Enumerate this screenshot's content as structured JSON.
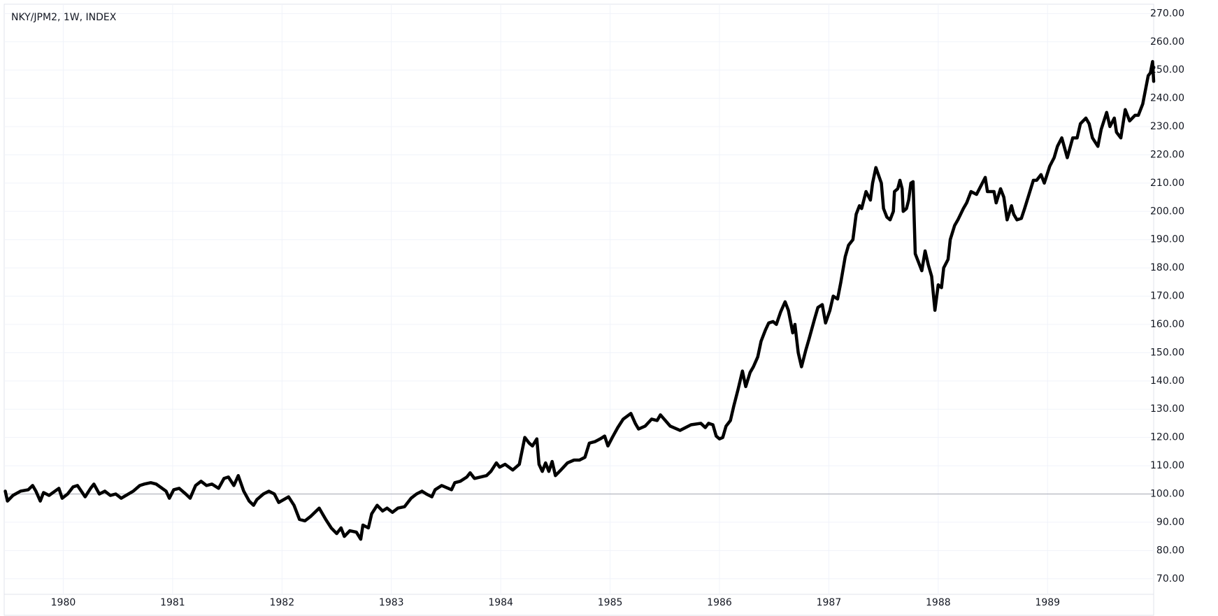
{
  "chart_data": {
    "type": "line",
    "title": "NKY/JPM2, 1W, INDEX",
    "color": "#000000",
    "grid": true,
    "baseline": 100,
    "x": [
      1979.47,
      1979.49,
      1979.54,
      1979.61,
      1979.68,
      1979.72,
      1979.75,
      1979.79,
      1979.82,
      1979.87,
      1979.96,
      1979.99,
      1980.04,
      1980.09,
      1980.13,
      1980.2,
      1980.25,
      1980.28,
      1980.33,
      1980.38,
      1980.43,
      1980.48,
      1980.53,
      1980.64,
      1980.7,
      1980.74,
      1980.8,
      1980.85,
      1980.94,
      1980.97,
      1981.01,
      1981.06,
      1981.12,
      1981.16,
      1981.21,
      1981.26,
      1981.31,
      1981.36,
      1981.42,
      1981.47,
      1981.51,
      1981.56,
      1981.6,
      1981.65,
      1981.7,
      1981.74,
      1981.77,
      1981.83,
      1981.88,
      1981.93,
      1981.97,
      1982.06,
      1982.11,
      1982.16,
      1982.21,
      1982.26,
      1982.34,
      1982.4,
      1982.45,
      1982.5,
      1982.54,
      1982.57,
      1982.62,
      1982.68,
      1982.72,
      1982.74,
      1982.79,
      1982.82,
      1982.87,
      1982.92,
      1982.96,
      1983.01,
      1983.06,
      1983.12,
      1983.18,
      1983.23,
      1983.28,
      1983.32,
      1983.37,
      1983.4,
      1983.46,
      1983.55,
      1983.58,
      1983.63,
      1983.69,
      1983.72,
      1983.76,
      1983.87,
      1983.91,
      1983.96,
      1983.99,
      1984.04,
      1984.11,
      1984.17,
      1984.22,
      1984.26,
      1984.29,
      1984.33,
      1984.35,
      1984.38,
      1984.41,
      1984.44,
      1984.47,
      1984.5,
      1984.55,
      1984.61,
      1984.67,
      1984.72,
      1984.77,
      1984.81,
      1984.86,
      1984.91,
      1984.95,
      1984.98,
      1985.02,
      1985.07,
      1985.12,
      1985.19,
      1985.23,
      1985.26,
      1985.32,
      1985.38,
      1985.43,
      1985.46,
      1985.55,
      1985.64,
      1985.74,
      1985.83,
      1985.87,
      1985.9,
      1985.94,
      1985.97,
      1986.0,
      1986.03,
      1986.06,
      1986.1,
      1986.13,
      1986.17,
      1986.21,
      1986.24,
      1986.28,
      1986.31,
      1986.35,
      1986.38,
      1986.42,
      1986.45,
      1986.49,
      1986.52,
      1986.56,
      1986.6,
      1986.63,
      1986.67,
      1986.69,
      1986.72,
      1986.75,
      1986.79,
      1986.82,
      1986.87,
      1986.9,
      1986.94,
      1986.97,
      1987.01,
      1987.04,
      1987.08,
      1987.11,
      1987.15,
      1987.18,
      1987.22,
      1987.25,
      1987.28,
      1987.3,
      1987.34,
      1987.38,
      1987.4,
      1987.43,
      1987.48,
      1987.5,
      1987.53,
      1987.56,
      1987.59,
      1987.6,
      1987.63,
      1987.65,
      1987.67,
      1987.68,
      1987.71,
      1987.73,
      1987.75,
      1987.77,
      1987.79,
      1987.82,
      1987.85,
      1987.88,
      1987.91,
      1987.94,
      1987.97,
      1988.0,
      1988.03,
      1988.05,
      1988.09,
      1988.11,
      1988.15,
      1988.18,
      1988.23,
      1988.26,
      1988.3,
      1988.35,
      1988.39,
      1988.43,
      1988.45,
      1988.51,
      1988.53,
      1988.57,
      1988.6,
      1988.63,
      1988.67,
      1988.69,
      1988.72,
      1988.76,
      1988.79,
      1988.83,
      1988.87,
      1988.9,
      1988.94,
      1988.97,
      1989.02,
      1989.06,
      1989.09,
      1989.13,
      1989.18,
      1989.23,
      1989.27,
      1989.3,
      1989.35,
      1989.38,
      1989.41,
      1989.46,
      1989.49,
      1989.54,
      1989.57,
      1989.61,
      1989.63,
      1989.67,
      1989.71,
      1989.75,
      1989.8,
      1989.83,
      1989.87,
      1989.89,
      1989.92,
      1989.94,
      1989.96,
      1989.97
    ],
    "values": [
      101,
      97.5,
      99.5,
      101,
      101.5,
      103,
      101,
      97.5,
      100.5,
      99.5,
      102,
      98.5,
      100,
      102.5,
      103,
      99,
      102,
      103.5,
      100,
      101,
      99.5,
      100,
      98.5,
      101,
      103,
      103.5,
      104,
      103.5,
      101,
      98.5,
      101.5,
      102,
      100,
      98.5,
      103,
      104.5,
      103,
      103.5,
      102,
      105.5,
      106,
      103,
      106.5,
      101,
      97.5,
      96,
      98,
      100,
      101,
      100,
      97,
      99,
      96,
      91,
      90.5,
      92,
      95,
      91,
      88,
      86,
      88,
      85,
      87,
      86.5,
      84,
      89,
      88,
      93,
      96,
      94,
      95,
      93.5,
      95,
      95.5,
      98.5,
      100,
      101,
      100,
      99,
      101.5,
      103,
      101.5,
      104,
      104.5,
      106,
      107.5,
      105.5,
      106.5,
      108,
      111,
      109.5,
      110.5,
      108.5,
      110.5,
      120,
      118,
      117,
      119.5,
      110.5,
      108,
      111,
      108,
      111.5,
      106.5,
      108.5,
      111,
      112,
      112,
      113,
      118,
      118.5,
      119.5,
      120.5,
      117,
      120,
      123.5,
      126.5,
      128.5,
      125,
      123,
      124,
      126.5,
      126,
      128,
      124,
      122.5,
      124.5,
      125,
      123.5,
      125,
      124.5,
      120.5,
      119.5,
      120,
      124,
      126,
      131,
      137,
      143.5,
      138,
      143,
      145,
      148.5,
      154,
      158,
      160.5,
      161,
      160,
      164.5,
      168,
      165,
      157,
      160,
      150,
      145,
      151,
      155,
      162,
      166,
      167,
      160.5,
      165,
      170,
      169,
      175,
      184,
      188,
      190,
      199,
      202,
      201,
      207,
      204,
      210,
      215.5,
      210,
      201,
      198,
      197,
      200,
      207,
      208,
      211,
      208,
      200,
      201,
      204,
      210,
      210.5,
      185,
      182,
      179,
      186,
      181,
      177,
      165,
      174,
      173,
      180,
      183,
      190,
      195,
      197,
      201,
      203,
      207,
      206,
      209,
      212,
      207,
      207,
      203,
      208,
      205,
      197,
      202,
      199,
      197,
      197.5,
      201,
      206,
      211,
      211,
      213,
      210,
      216,
      219,
      223,
      226,
      219,
      226,
      226,
      231,
      233,
      231,
      226,
      223,
      229,
      235,
      230,
      233,
      228,
      226,
      236,
      232,
      234,
      234,
      238,
      242,
      248,
      249,
      253,
      246
    ],
    "xlim": [
      1979.46,
      1989.97
    ],
    "xticks": [
      1980,
      1981,
      1982,
      1983,
      1984,
      1985,
      1986,
      1987,
      1988,
      1989
    ],
    "ylim": [
      64.5,
      273.3
    ],
    "yticks": [
      {
        "value": 70,
        "label": "70.00"
      },
      {
        "value": 80,
        "label": "80.00"
      },
      {
        "value": 90,
        "label": "90.00"
      },
      {
        "value": 100,
        "label": "100.00"
      },
      {
        "value": 110,
        "label": "110.00"
      },
      {
        "value": 120,
        "label": "120.00"
      },
      {
        "value": 130,
        "label": "130.00"
      },
      {
        "value": 140,
        "label": "140.00"
      },
      {
        "value": 150,
        "label": "150.00"
      },
      {
        "value": 160,
        "label": "160.00"
      },
      {
        "value": 170,
        "label": "170.00"
      },
      {
        "value": 180,
        "label": "180.00"
      },
      {
        "value": 190,
        "label": "190.00"
      },
      {
        "value": 200,
        "label": "200.00"
      },
      {
        "value": 210,
        "label": "210.00"
      },
      {
        "value": 220,
        "label": "220.00"
      },
      {
        "value": 230,
        "label": "230.00"
      },
      {
        "value": 240,
        "label": "240.00"
      },
      {
        "value": 250,
        "label": "250.00"
      },
      {
        "value": 260,
        "label": "260.00"
      },
      {
        "value": 270,
        "label": "270.00"
      }
    ]
  }
}
